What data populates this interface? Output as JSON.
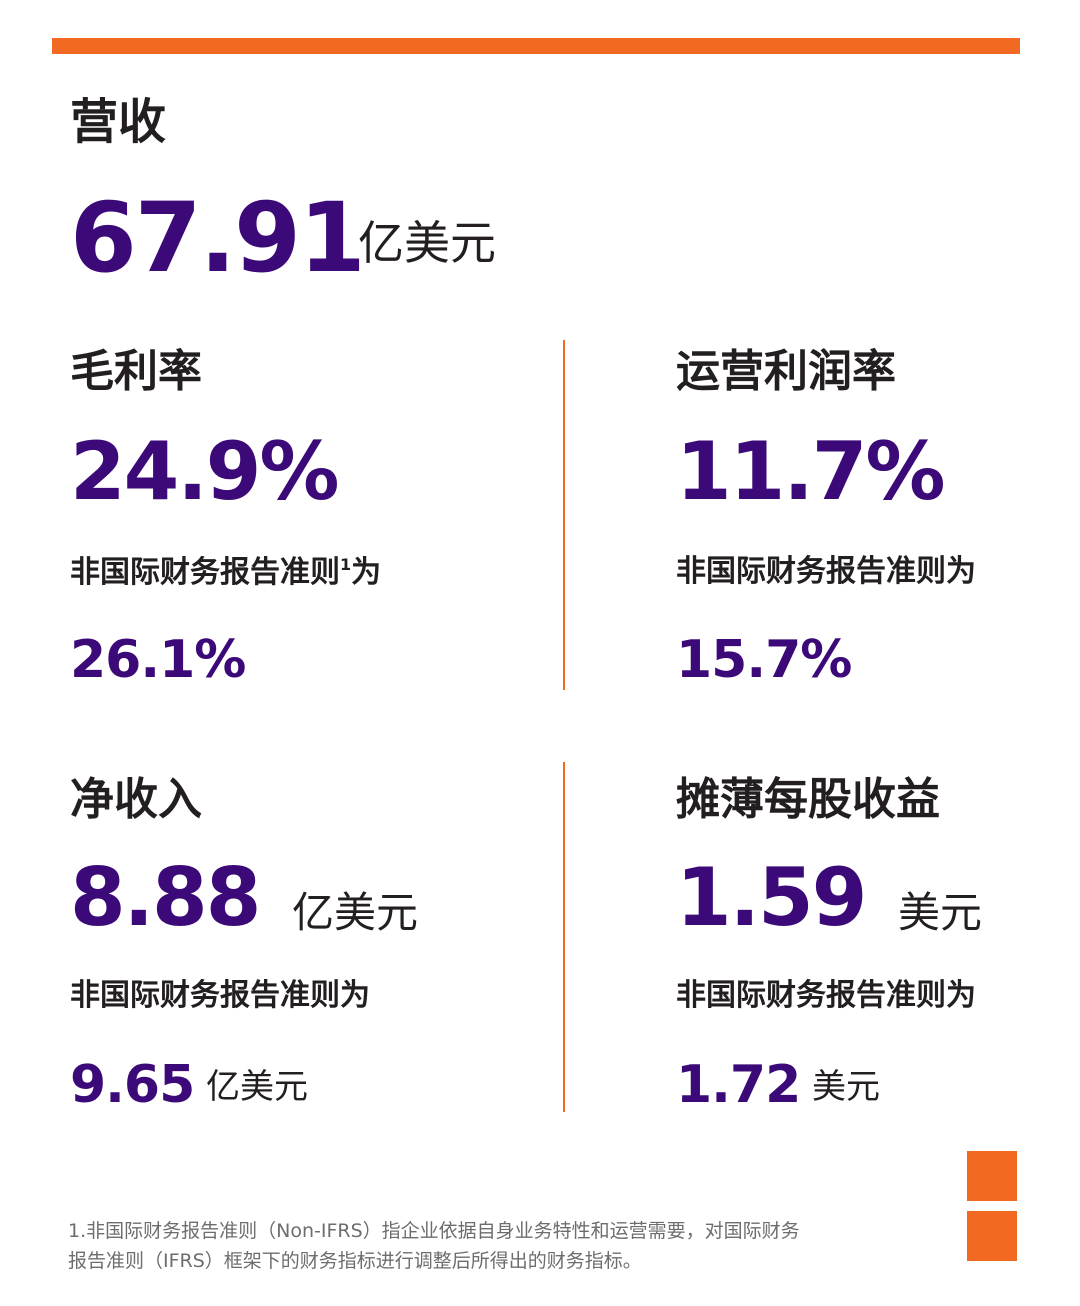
{
  "colors": {
    "accent_orange": "#f26a21",
    "value_purple": "#3c0a78",
    "text_dark": "#231f20",
    "footnote_gray": "#6d6d6d"
  },
  "revenue": {
    "label": "营收",
    "value": "67.91",
    "unit": "亿美元"
  },
  "gross_margin": {
    "label": "毛利率",
    "value": "24.9%",
    "non_ifrs_label": "非国际财务报告准则",
    "non_ifrs_sup": "1",
    "non_ifrs_suffix": "为",
    "non_ifrs_value": "26.1%"
  },
  "operating_margin": {
    "label": "运营利润率",
    "value": "11.7%",
    "non_ifrs_label": "非国际财务报告准则为",
    "non_ifrs_value": "15.7%"
  },
  "net_income": {
    "label": "净收入",
    "value": "8.88",
    "unit": "亿美元",
    "non_ifrs_label": "非国际财务报告准则为",
    "non_ifrs_value": "9.65",
    "non_ifrs_unit": "亿美元"
  },
  "diluted_eps": {
    "label": "摊薄每股收益",
    "value": "1.59",
    "unit": "美元",
    "non_ifrs_label": "非国际财务报告准则为",
    "non_ifrs_value": "1.72",
    "non_ifrs_unit": "美元"
  },
  "footnote": {
    "line1": "1.非国际财务报告准则（Non-IFRS）指企业依据自身业务特性和运营需要，对国际财务",
    "line2": "报告准则（IFRS）框架下的财务指标进行调整后所得出的财务指标。"
  }
}
